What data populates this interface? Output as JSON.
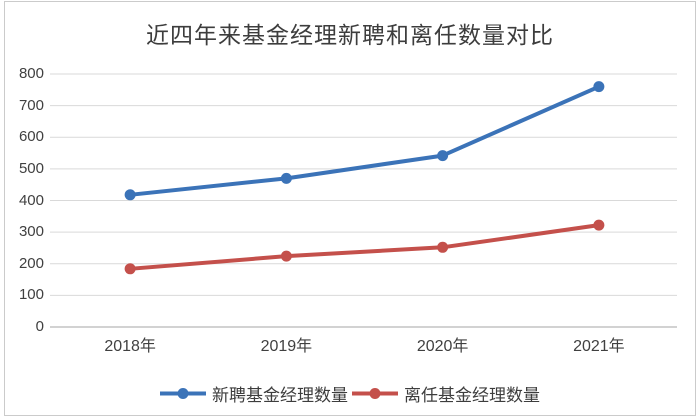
{
  "title": "近四年来基金经理新聘和离任数量对比",
  "colors": {
    "series_new_hire": "#3b73b8",
    "series_departure": "#c4504b",
    "gridline": "#d9d9d9",
    "axis_line": "#c3c3c3",
    "text": "#404040",
    "frame_border": "#cbcbcb"
  },
  "legend": {
    "items": [
      {
        "label": "新聘基金经理数量",
        "marker": "line-with-dot",
        "color": "#3b73b8"
      },
      {
        "label": "离任基金经理数量",
        "marker": "line-with-dot",
        "color": "#c4504b"
      }
    ]
  },
  "chart_data": {
    "type": "line",
    "title": "近四年来基金经理新聘和离任数量对比",
    "categories": [
      "2018年",
      "2019年",
      "2020年",
      "2021年"
    ],
    "series": [
      {
        "name": "新聘基金经理数量",
        "color": "#3b73b8",
        "values": [
          418,
          470,
          542,
          760
        ]
      },
      {
        "name": "离任基金经理数量",
        "color": "#c4504b",
        "values": [
          184,
          224,
          252,
          322
        ]
      }
    ],
    "xlabel": "",
    "ylabel": "",
    "ylim": [
      0,
      800
    ],
    "ytick_step": 100,
    "yticks": [
      0,
      100,
      200,
      300,
      400,
      500,
      600,
      700,
      800
    ],
    "grid": true,
    "legend_position": "bottom"
  }
}
